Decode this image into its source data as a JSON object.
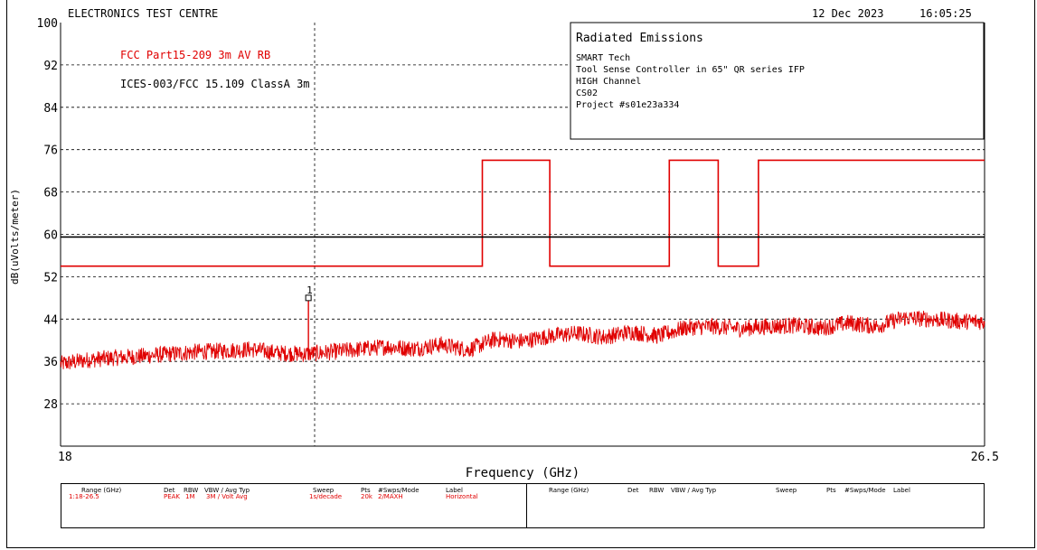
{
  "header": {
    "lab_name": "ELECTRONICS TEST CENTRE",
    "date": "12 Dec 2023",
    "time": "16:05:25"
  },
  "info_box": {
    "title": "Radiated Emissions",
    "lines": [
      "SMART Tech",
      "Tool Sense Controller in 65\" QR series IFP",
      "HIGH Channel",
      "CS02",
      "Project #s01e23a334"
    ]
  },
  "colors": {
    "trace": "#e00000",
    "limit_red": "#e00000",
    "limit_black": "#000000",
    "grid": "#000000"
  },
  "chart_data": {
    "type": "line",
    "xlabel": "Frequency (GHz)",
    "ylabel": "dB(uVolts/meter)",
    "xlim": [
      18,
      26.5
    ],
    "ylim": [
      20,
      100
    ],
    "x_tick_labels": [
      "18",
      "26.5"
    ],
    "y_ticks": [
      100,
      92,
      84,
      76,
      68,
      60,
      52,
      44,
      36,
      28
    ],
    "grid": true,
    "legend": [
      {
        "name": "FCC Part15-209 3m AV RB",
        "color": "#e00000"
      },
      {
        "name": "ICES-003/FCC 15.109 ClassA 3m",
        "color": "#000000"
      }
    ],
    "limit_lines": [
      {
        "name": "FCC Part15-209 3m AV RB",
        "color": "#e00000",
        "points": [
          [
            18,
            54
          ],
          [
            21.88,
            54
          ],
          [
            21.88,
            74
          ],
          [
            22.5,
            74
          ],
          [
            22.5,
            54
          ],
          [
            23.6,
            54
          ],
          [
            23.6,
            74
          ],
          [
            24.05,
            74
          ],
          [
            24.05,
            54
          ],
          [
            24.42,
            54
          ],
          [
            24.42,
            74
          ],
          [
            26.5,
            74
          ]
        ]
      },
      {
        "name": "ICES-003/FCC 15.109 ClassA 3m",
        "color": "#000000",
        "points": [
          [
            18,
            59.5
          ],
          [
            26.5,
            59.5
          ]
        ]
      }
    ],
    "series": [
      {
        "name": "Horizontal",
        "color": "#e00000",
        "x": [
          18,
          18.25,
          18.5,
          18.75,
          19.0,
          19.25,
          19.5,
          19.75,
          20.0,
          20.25,
          20.5,
          20.75,
          21.0,
          21.25,
          21.5,
          21.75,
          22.0,
          22.25,
          22.5,
          22.75,
          23.0,
          23.25,
          23.5,
          23.75,
          24.0,
          24.25,
          24.5,
          24.75,
          25.0,
          25.25,
          25.5,
          25.75,
          26.0,
          26.25,
          26.5
        ],
        "y": [
          35.5,
          36.3,
          36.7,
          37.0,
          37.4,
          37.8,
          38.0,
          38.3,
          37.6,
          37.4,
          37.8,
          38.3,
          38.8,
          38.4,
          39.2,
          38.2,
          40.2,
          39.8,
          40.8,
          41.3,
          40.6,
          41.6,
          40.8,
          42.4,
          42.6,
          42.2,
          42.6,
          42.8,
          42.3,
          43.3,
          42.6,
          44.2,
          44.0,
          43.6,
          43.5
        ],
        "noise_amplitude": 1.6
      }
    ],
    "markers": [
      {
        "label": "1",
        "x": 20.28,
        "y": 48
      }
    ]
  },
  "settings_table": {
    "headers": [
      "Range (GHz)",
      "Det",
      "RBW",
      "VBW / Avg Typ",
      "Sweep",
      "Pts",
      "#Swps/Mode",
      "Label"
    ],
    "row": [
      "1:18-26.5",
      "PEAK",
      "1M",
      "3M / Volt Avg",
      "1s/decade",
      "20k",
      "2/MAXH",
      "Horizontal"
    ]
  }
}
